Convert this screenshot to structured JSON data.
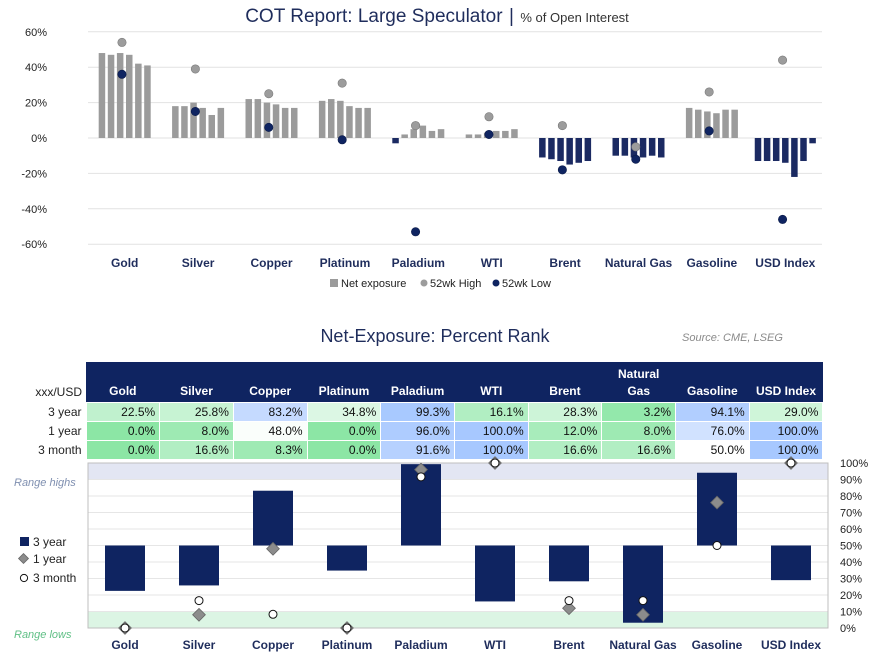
{
  "chart1": {
    "title": "COT Report: Large Speculator",
    "title_sep": "|",
    "subtitle": "% of Open Interest",
    "y_ticks": [
      "60%",
      "40%",
      "20%",
      "0%",
      "-20%",
      "-40%",
      "-60%"
    ],
    "legend": {
      "net": "Net exposure",
      "high": "52wk High",
      "low": "52wk Low"
    },
    "colors": {
      "net": "#9b9b9b",
      "net_neg": "#1b2a62",
      "high": "#9c9c9c",
      "low": "#0f2461"
    }
  },
  "categories": [
    "Gold",
    "Silver",
    "Copper",
    "Platinum",
    "Paladium",
    "WTI",
    "Brent",
    "Natural Gas",
    "Gasoline",
    "USD Index"
  ],
  "chart_data": [
    {
      "type": "bar",
      "title": "COT Report: Large Speculator",
      "subtitle": "% of Open Interest",
      "categories": [
        "Gold",
        "Silver",
        "Copper",
        "Platinum",
        "Paladium",
        "WTI",
        "Brent",
        "Natural Gas",
        "Gasoline",
        "USD Index"
      ],
      "ylim": [
        -60,
        60
      ],
      "grid": true,
      "legend_position": "bottom",
      "series": [
        {
          "name": "Net exposure",
          "values": [
            [
              48,
              47,
              48,
              47,
              42,
              41
            ],
            [
              18,
              18,
              20,
              17,
              13,
              17
            ],
            [
              22,
              22,
              20,
              19,
              17,
              17
            ],
            [
              21,
              22,
              21,
              18,
              17,
              17
            ],
            [
              -3,
              2,
              5,
              7,
              4,
              5
            ],
            [
              2,
              2,
              3,
              4,
              4,
              5
            ],
            [
              -11,
              -12,
              -13,
              -15,
              -14,
              -13
            ],
            [
              -10,
              -10,
              -11,
              -11,
              -10,
              -11
            ],
            [
              17,
              16,
              15,
              14,
              16,
              16
            ],
            [
              -13,
              -13,
              -13,
              -14,
              -22,
              -13,
              -3
            ]
          ]
        },
        {
          "name": "52wk High",
          "values": [
            54,
            39,
            25,
            31,
            7,
            12,
            7,
            -5,
            26,
            44
          ]
        },
        {
          "name": "52wk Low",
          "values": [
            36,
            15,
            6,
            -1,
            -53,
            2,
            -18,
            -12,
            4,
            -46
          ]
        }
      ]
    },
    {
      "type": "bar",
      "title": "Net-Exposure: Percent Rank",
      "categories": [
        "Gold",
        "Silver",
        "Copper",
        "Platinum",
        "Paladium",
        "WTI",
        "Brent",
        "Natural Gas",
        "Gasoline",
        "USD Index"
      ],
      "ylim": [
        0,
        100
      ],
      "baseline": 50,
      "series": [
        {
          "name": "3 year",
          "values": [
            22.5,
            25.8,
            83.2,
            34.8,
            99.3,
            16.1,
            28.3,
            3.2,
            94.1,
            29.0
          ]
        },
        {
          "name": "1 year",
          "values": [
            0.0,
            8.0,
            48.0,
            0.0,
            96.0,
            100.0,
            12.0,
            8.0,
            76.0,
            100.0
          ]
        },
        {
          "name": "3 month",
          "values": [
            0.0,
            16.6,
            8.3,
            0.0,
            91.6,
            100.0,
            16.6,
            16.6,
            50.0,
            100.0
          ]
        }
      ],
      "range_highs": [
        90,
        100
      ],
      "range_lows": [
        0,
        10
      ]
    }
  ],
  "chart2": {
    "title": "Net-Exposure: Percent Rank",
    "source": "Source: CME, LSEG",
    "y_ticks": [
      "100%",
      "90%",
      "80%",
      "70%",
      "60%",
      "50%",
      "40%",
      "30%",
      "20%",
      "10%",
      "0%"
    ],
    "range_highs_label": "Range highs",
    "range_lows_label": "Range lows",
    "legend": {
      "y3": "3 year",
      "y1": "1 year",
      "m3": "3 month"
    }
  },
  "table": {
    "corner": "xxx/USD",
    "headers": [
      "Gold",
      "Silver",
      "Copper",
      "Platinum",
      "Paladium",
      "WTI",
      "Brent",
      "Natural Gas",
      "Gasoline",
      "USD Index"
    ],
    "rows": [
      {
        "label": "3 year",
        "cells": [
          "22.5%",
          "25.8%",
          "83.2%",
          "34.8%",
          "99.3%",
          "16.1%",
          "28.3%",
          "3.2%",
          "94.1%",
          "29.0%"
        ]
      },
      {
        "label": "1 year",
        "cells": [
          "0.0%",
          "8.0%",
          "48.0%",
          "0.0%",
          "96.0%",
          "100.0%",
          "12.0%",
          "8.0%",
          "76.0%",
          "100.0%"
        ]
      },
      {
        "label": "3 month",
        "cells": [
          "0.0%",
          "16.6%",
          "8.3%",
          "0.0%",
          "91.6%",
          "100.0%",
          "16.6%",
          "16.6%",
          "50.0%",
          "100.0%"
        ]
      }
    ]
  }
}
